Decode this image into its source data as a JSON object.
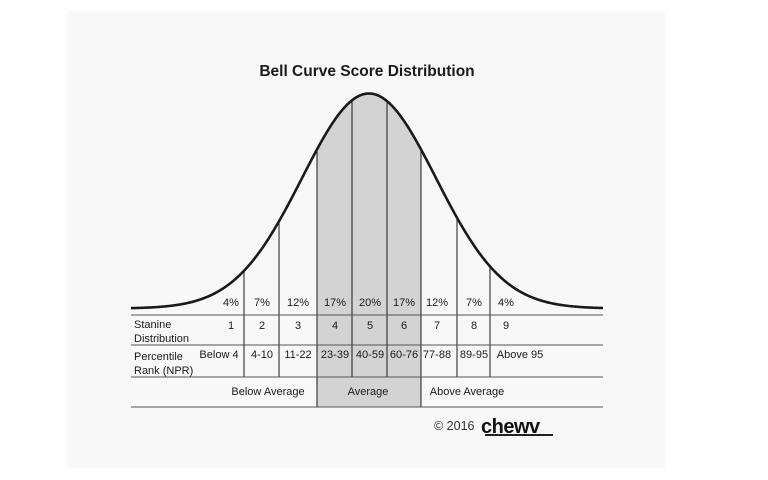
{
  "chart_data": {
    "type": "bell-curve",
    "title": "Bell Curve Score Distribution",
    "stanines": [
      "1",
      "2",
      "3",
      "4",
      "5",
      "6",
      "7",
      "8",
      "9"
    ],
    "percent_labels": [
      "4%",
      "7%",
      "12%",
      "17%",
      "20%",
      "17%",
      "12%",
      "7%",
      "4%"
    ],
    "percent_values": [
      4,
      7,
      12,
      17,
      20,
      17,
      12,
      7,
      4
    ],
    "percentile_ranges": [
      "Below 4",
      "4-10",
      "11-22",
      "23-39",
      "40-59",
      "60-76",
      "77-88",
      "89-95",
      "Above 95"
    ],
    "row_labels": {
      "stanine": [
        "Stanine",
        "Distribution"
      ],
      "percentile": [
        "Percentile",
        "Rank (NPR)"
      ]
    },
    "groups": [
      {
        "label": "Below Average",
        "stanines": [
          1,
          3
        ]
      },
      {
        "label": "Average",
        "stanines": [
          4,
          6
        ]
      },
      {
        "label": "Above Average",
        "stanines": [
          7,
          9
        ]
      }
    ],
    "shaded_stanines": [
      4,
      5,
      6
    ],
    "colors": {
      "shade": "#d3d3d3",
      "line": "#1a1a1a",
      "card": "#f8f8f8"
    }
  },
  "footer": {
    "copyright": "© 2016",
    "logo": "chewv"
  }
}
